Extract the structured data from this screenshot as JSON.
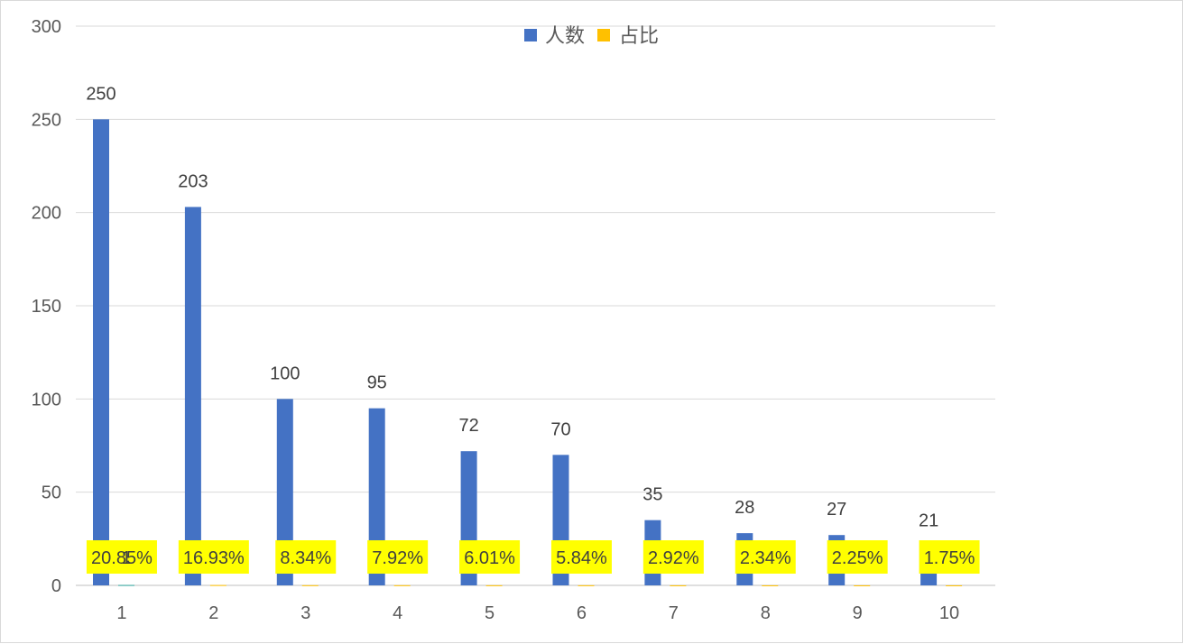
{
  "chart_data": {
    "type": "bar",
    "categories": [
      "1",
      "2",
      "3",
      "4",
      "5",
      "6",
      "7",
      "8",
      "9",
      "10"
    ],
    "series": [
      {
        "name": "人数",
        "color": "#4472C4",
        "values": [
          250,
          203,
          100,
          95,
          72,
          70,
          35,
          28,
          27,
          21
        ],
        "labels": [
          "250",
          "203",
          "100",
          "95",
          "72",
          "70",
          "35",
          "28",
          "27",
          "21"
        ]
      },
      {
        "name": "占比",
        "color": "#FFC000",
        "values": [
          0.2085,
          0.1693,
          0.0834,
          0.0792,
          0.0601,
          0.0584,
          0.0292,
          0.0234,
          0.0225,
          0.0175
        ],
        "labels": [
          "20.85%",
          "16.93%",
          "8.34%",
          "7.92%",
          "6.01%",
          "5.84%",
          "2.92%",
          "2.34%",
          "2.25%",
          "1.75%"
        ],
        "label_highlight": "#FFFF00"
      }
    ],
    "extra_label": "1",
    "yticks": [
      "0",
      "50",
      "100",
      "150",
      "200",
      "250",
      "300"
    ],
    "ylim": [
      0,
      300
    ],
    "grid": true,
    "legend": "top-center",
    "xlabel": "",
    "ylabel": ""
  }
}
